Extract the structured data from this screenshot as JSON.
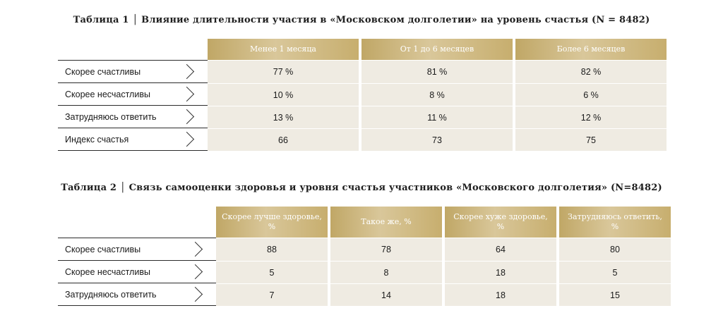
{
  "table1": {
    "title": "Таблица 1 │ Влияние длительности участия в «Московском долголетии» на уровень счастья (N = 8482)",
    "headers": [
      "Менее 1 месяца",
      "От 1 до 6 месяцев",
      "Более 6 месяцев"
    ],
    "rows": [
      {
        "label": "Скорее счастливы",
        "values": [
          "77 %",
          "81 %",
          "82 %"
        ]
      },
      {
        "label": "Скорее несчастливы",
        "values": [
          "10 %",
          "8 %",
          "6 %"
        ]
      },
      {
        "label": "Затрудняюсь ответить",
        "values": [
          "13 %",
          "11 %",
          "12 %"
        ]
      },
      {
        "label": "Индекс счастья",
        "values": [
          "66",
          "73",
          "75"
        ]
      }
    ]
  },
  "table2": {
    "title": "Таблица 2 │ Связь самооценки здоровья и уровня счастья участников «Московского долголетия» (N=8482)",
    "headers": [
      "Скорее лучше здоровье, %",
      "Такое же, %",
      "Скорее хуже здоровье, %",
      "Затрудняюсь ответить, %"
    ],
    "rows": [
      {
        "label": "Скорее счастливы",
        "values": [
          "88",
          "78",
          "64",
          "80"
        ]
      },
      {
        "label": "Скорее несчастливы",
        "values": [
          "5",
          "8",
          "18",
          "5"
        ]
      },
      {
        "label": "Затрудняюсь ответить",
        "values": [
          "7",
          "14",
          "18",
          "15"
        ]
      }
    ]
  },
  "colors": {
    "header_gold": "#c9b47c",
    "cell_beige": "#efebe2",
    "rule": "#2b2b2b"
  },
  "icons": {
    "row_marker": "chevron-right-icon"
  }
}
